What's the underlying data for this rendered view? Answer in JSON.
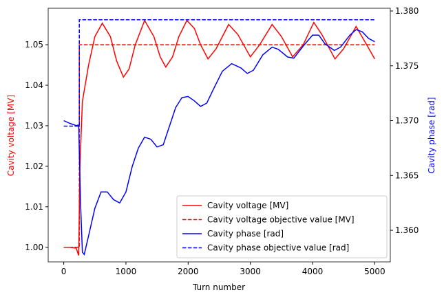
{
  "chart_data": {
    "type": "line",
    "xlabel": "Turn number",
    "ylabel": "Cavity voltage [MV]",
    "y2label": "Cavity phase [rad]",
    "ylabel_color": "#ff0000",
    "y2label_color": "#0000ff",
    "xlim": [
      -250,
      5250
    ],
    "xticks": [
      0,
      1000,
      2000,
      3000,
      4000,
      5000
    ],
    "ylim": [
      0.9964,
      1.059
    ],
    "yticks": [
      {
        "value": 1.0,
        "label": "1.00"
      },
      {
        "value": 1.01,
        "label": "1.01"
      },
      {
        "value": 1.02,
        "label": "1.02"
      },
      {
        "value": 1.03,
        "label": "1.03"
      },
      {
        "value": 1.04,
        "label": "1.04"
      },
      {
        "value": 1.05,
        "label": "1.05"
      }
    ],
    "y2lim": [
      1.35712,
      1.38025
    ],
    "y2ticks": [
      {
        "value": 1.36,
        "label": "1.360"
      },
      {
        "value": 1.365,
        "label": "1.365"
      },
      {
        "value": 1.37,
        "label": "1.370"
      },
      {
        "value": 1.375,
        "label": "1.375"
      },
      {
        "value": 1.38,
        "label": "1.380"
      }
    ],
    "legend": "lower right",
    "series": [
      {
        "name": "Cavity voltage [MV]",
        "color": "#ff0000",
        "dashed": false,
        "axis": "y",
        "x": [
          0,
          100,
          200,
          240,
          260,
          300,
          400,
          500,
          620,
          750,
          850,
          960,
          1050,
          1150,
          1300,
          1450,
          1550,
          1640,
          1750,
          1850,
          1980,
          2100,
          2200,
          2320,
          2450,
          2650,
          2800,
          3000,
          3150,
          3350,
          3500,
          3680,
          3850,
          4020,
          4150,
          4360,
          4500,
          4700,
          4850,
          5000
        ],
        "values": [
          1.0,
          1.0,
          0.9998,
          0.998,
          1.02,
          1.036,
          1.045,
          1.052,
          1.0553,
          1.052,
          1.046,
          1.042,
          1.044,
          1.05,
          1.056,
          1.052,
          1.047,
          1.0445,
          1.047,
          1.052,
          1.056,
          1.054,
          1.05,
          1.0465,
          1.049,
          1.055,
          1.0525,
          1.047,
          1.05,
          1.055,
          1.052,
          1.047,
          1.05,
          1.0555,
          1.0525,
          1.0465,
          1.049,
          1.0545,
          1.0505,
          1.0465
        ]
      },
      {
        "name": "Cavity voltage objective value [MV]",
        "color": "#ff0000",
        "dashed": true,
        "axis": "y",
        "x": [
          0,
          250,
          250,
          5000
        ],
        "values": [
          1.0,
          1.0,
          1.05,
          1.05
        ]
      },
      {
        "name": "Cavity phase [rad]",
        "color": "#0000ff",
        "dashed": false,
        "axis": "y2",
        "x": [
          0,
          100,
          200,
          240,
          270,
          300,
          330,
          400,
          500,
          600,
          700,
          800,
          900,
          1000,
          1100,
          1200,
          1300,
          1400,
          1500,
          1600,
          1700,
          1800,
          1900,
          2000,
          2100,
          2200,
          2300,
          2400,
          2550,
          2700,
          2850,
          2950,
          3050,
          3200,
          3350,
          3450,
          3600,
          3700,
          3850,
          4000,
          4100,
          4200,
          4350,
          4450,
          4600,
          4700,
          4800,
          4900,
          5000
        ],
        "values": [
          1.37,
          1.36975,
          1.36955,
          1.3696,
          1.3625,
          1.358,
          1.3578,
          1.3595,
          1.362,
          1.3635,
          1.3635,
          1.3628,
          1.3625,
          1.3635,
          1.3658,
          1.3675,
          1.3685,
          1.3683,
          1.3676,
          1.3678,
          1.3695,
          1.3712,
          1.3721,
          1.3722,
          1.3718,
          1.3713,
          1.3716,
          1.3728,
          1.3745,
          1.3752,
          1.3748,
          1.3743,
          1.3746,
          1.376,
          1.3767,
          1.3765,
          1.3758,
          1.3757,
          1.3768,
          1.3778,
          1.3778,
          1.377,
          1.3764,
          1.3767,
          1.3778,
          1.3783,
          1.3781,
          1.3775,
          1.3772
        ]
      },
      {
        "name": "Cavity phase objective value [rad]",
        "color": "#0000ff",
        "dashed": true,
        "axis": "y2",
        "x": [
          0,
          250,
          250,
          5000
        ],
        "values": [
          1.3695,
          1.3695,
          1.3792,
          1.3792
        ]
      }
    ]
  }
}
